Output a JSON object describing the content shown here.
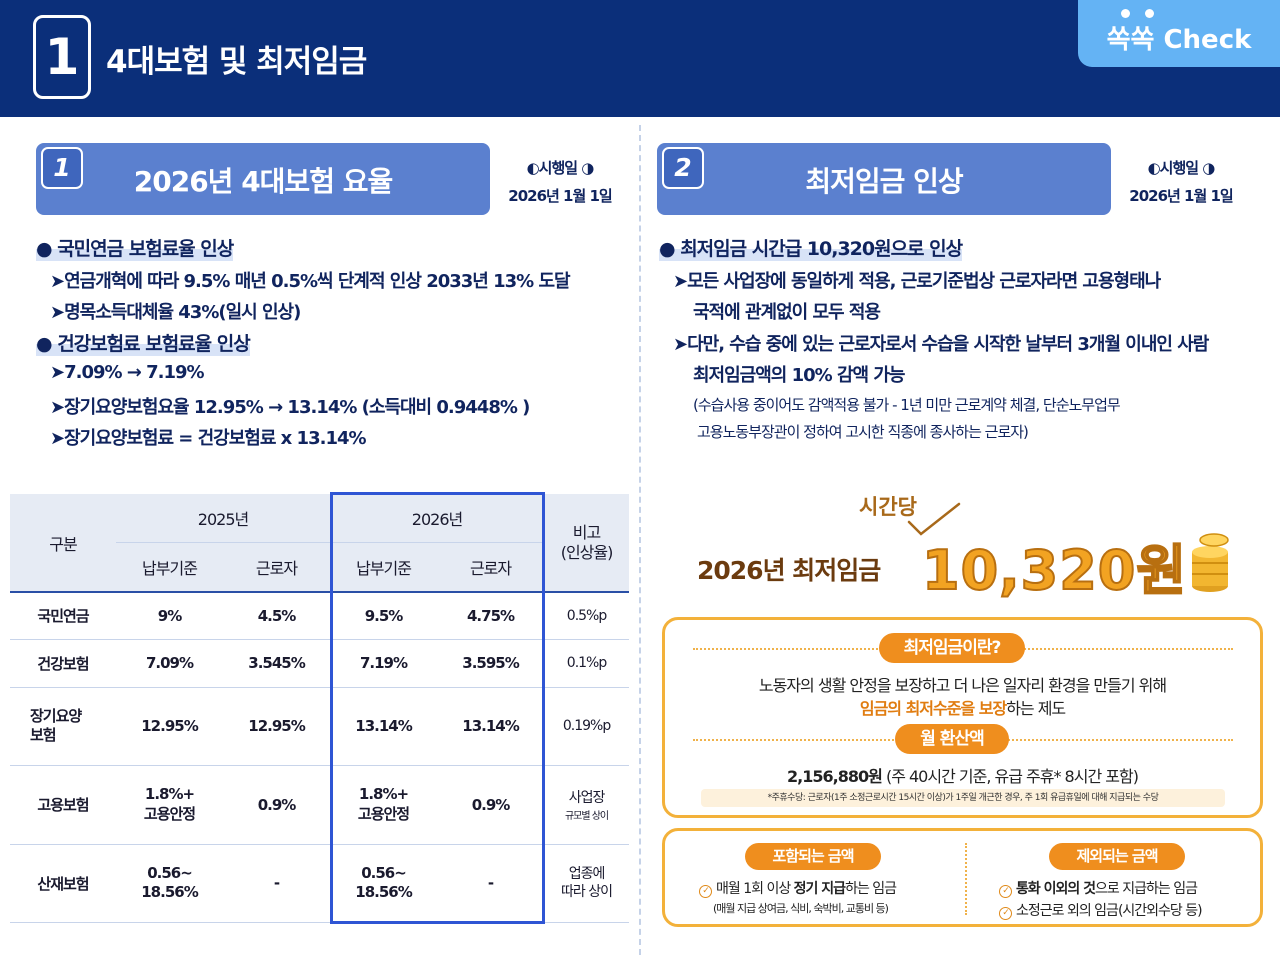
{
  "header": {
    "section_number": "1",
    "title": "4대보험 및 최저임금",
    "badge": "쏙쏙 Check"
  },
  "left": {
    "section_num": "1",
    "section_title": "2026년 4대보험 요율",
    "effective_label": "◐시행일 ◑",
    "effective_date": "2026년 1월 1일",
    "bullets": {
      "b1": "● 국민연금 보험료율 인상",
      "b1_s1": "➤연금개혁에 따라 9.5% 매년 0.5%씩 단계적 인상 2033년  13% 도달",
      "b1_s2": "➤명목소득대체율 43%(일시 인상)",
      "b2": "● 건강보험료 보험료율 인상",
      "b2_s1": "➤7.09% → 7.19%",
      "b2_s2": "➤장기요양보험요율 12.95% → 13.14% (소득대비 0.9448% )",
      "b2_s3": "➤장기요양보험료 = 건강보험료  x 13.14%"
    },
    "table": {
      "head_category": "구분",
      "head_2025": "2025년",
      "head_2026": "2026년",
      "head_note": "비고\n(인상율)",
      "sub_payment": "납부기준",
      "sub_worker": "근로자",
      "rows": [
        {
          "label": "국민연금",
          "y25a": "9%",
          "y25b": "4.5%",
          "y26a": "9.5%",
          "y26b": "4.75%",
          "note": "0.5%p",
          "note_small": ""
        },
        {
          "label": "건강보험",
          "y25a": "7.09%",
          "y25b": "3.545%",
          "y26a": "7.19%",
          "y26b": "3.595%",
          "note": "0.1%p",
          "note_small": ""
        },
        {
          "label": "장기요양\n보험",
          "y25a": "12.95%",
          "y25b": "12.95%",
          "y26a": "13.14%",
          "y26b": "13.14%",
          "note": "0.19%p",
          "note_small": ""
        },
        {
          "label": "고용보험",
          "y25a": "1.8%+\n고용안정",
          "y25b": "0.9%",
          "y26a": "1.8%+\n고용안정",
          "y26b": "0.9%",
          "note": "사업장",
          "note_small": "규모별 상이"
        },
        {
          "label": "산재보험",
          "y25a": "0.56~\n18.56%",
          "y25b": "-",
          "y26a": "0.56~\n18.56%",
          "y26b": "-",
          "note": "업종에\n따라 상이",
          "note_small": ""
        }
      ]
    }
  },
  "right": {
    "section_num": "2",
    "section_title": "최저임금 인상",
    "effective_label": "◐시행일 ◑",
    "effective_date": "2026년 1월 1일",
    "bullets": {
      "b1": "● 최저임금 시간급 10,320원으로 인상",
      "b1_s1": "➤모든 사업장에 동일하게 적용, 근로기준법상 근로자라면 고용형태나",
      "b1_s1b": "국적에 관계없이 모두 적용",
      "b1_s2": "➤다만, 수습 중에 있는 근로자로서 수습을 시작한 날부터 3개월 이내인 사람",
      "b1_s2b": "최저임금액의 10% 감액 가능",
      "b1_t1": "(수습사용 중이어도 감액적용 불가 - 1년 미만 근로계약 체결, 단순노무업무",
      "b1_t2": "고용노동부장관이  정하여 고시한 직종에 종사하는 근로자)"
    },
    "wage": {
      "hourly": "시간당",
      "label": "2026년 최저임금",
      "amount": "10,320원"
    },
    "definition": {
      "pill": "최저임금이란?",
      "line1": "노동자의 생활 안정을 보장하고 더 나은 일자리 환경을 만들기 위해",
      "line2_em": "임금의 최저수준을 보장",
      "line2_rest": "하는 제도",
      "monthly_pill": "월 환산액",
      "monthly_amount": "2,156,880원",
      "monthly_detail": " (주 40시간 기준, 유급 주휴* 8시간 포함)",
      "footnote": "*주휴수당: 근로자(1주 소정근로시간 15시간 이상)가 1주일 개근한 경우, 주 1회 유급휴일에 대해 지급되는 수당"
    },
    "included": {
      "pill": "포함되는 금액",
      "item_pre": "매월 1회 이상 ",
      "item_em": "정기 지급",
      "item_post": "하는 임금",
      "detail": "(매월 지급 상여금, 식비, 숙박비, 교통비 등)"
    },
    "excluded": {
      "pill": "제외되는 금액",
      "item1_em": "통화 이외의 것",
      "item1_post": "으로 지급하는 임금",
      "item2": "소정근로 외의 임금(시간외수당 등)"
    }
  }
}
